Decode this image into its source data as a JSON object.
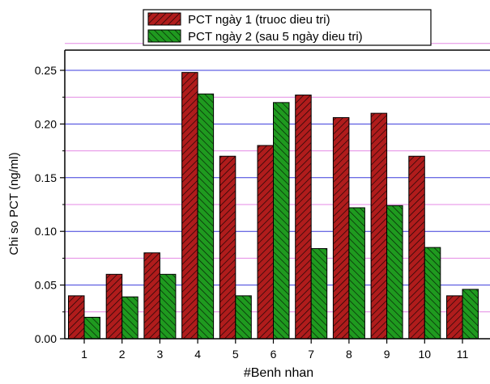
{
  "chart_data": {
    "type": "bar",
    "xlabel": "#Benh nhan",
    "ylabel": "Chi so PCT (ng/ml)",
    "ylim": [
      0,
      0.25
    ],
    "yticks": [
      "0.00",
      "0.05",
      "0.10",
      "0.15",
      "0.20",
      "0.25"
    ],
    "categories": [
      "1",
      "2",
      "3",
      "4",
      "5",
      "6",
      "7",
      "8",
      "9",
      "10",
      "11"
    ],
    "series": [
      {
        "name": "PCT ngày 1 (truoc dieu tri)",
        "color": "#b01c1c",
        "pattern": "diagonal-hatch",
        "values": [
          0.04,
          0.06,
          0.08,
          0.248,
          0.17,
          0.18,
          0.227,
          0.206,
          0.21,
          0.17,
          0.04
        ]
      },
      {
        "name": "PCT ngày 2 (sau 5 ngày dieu tri)",
        "color": "#1f9a1f",
        "pattern": "diagonal-hatch",
        "values": [
          0.02,
          0.039,
          0.06,
          0.228,
          0.04,
          0.22,
          0.084,
          0.122,
          0.124,
          0.085,
          0.046
        ]
      }
    ],
    "grid": true,
    "grid_colors": {
      "major": "#3b3bdc",
      "minor": "#e48ae4"
    },
    "legend_position": "top-center"
  }
}
